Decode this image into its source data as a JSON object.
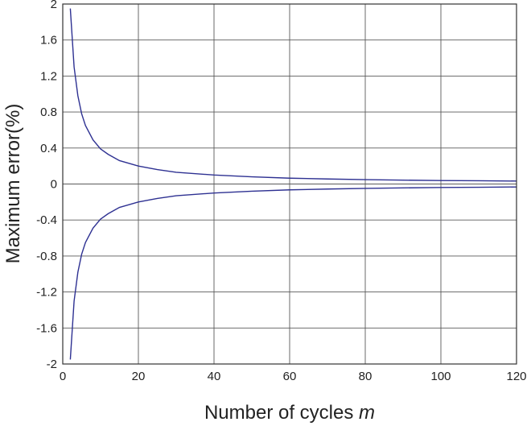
{
  "chart_data": {
    "type": "line",
    "title": "",
    "xlabel_prefix": "Number of cycles ",
    "xlabel_var": "m",
    "ylabel": "Maximum error(%)",
    "xlim": [
      0,
      120
    ],
    "ylim": [
      -2,
      2
    ],
    "x_ticks": [
      0,
      20,
      40,
      60,
      80,
      100,
      120
    ],
    "x_tick_labels": [
      "0",
      "20",
      "40",
      "60",
      "80",
      "100",
      "120"
    ],
    "y_ticks": [
      2,
      1.6,
      1.2,
      0.8,
      0.4,
      0,
      -0.4,
      -0.8,
      -1.2,
      -1.6,
      -2
    ],
    "y_tick_labels": [
      "2",
      "1.6",
      "1.2",
      "0.8",
      "0.4",
      "0",
      "-0.4",
      "-0.8",
      "-1.2",
      "-1.6",
      "-2"
    ],
    "grid": true,
    "line_color": "#2e3192",
    "series": [
      {
        "x": [
          2,
          3,
          4,
          5,
          6,
          8,
          10,
          12,
          15,
          20,
          25,
          30,
          40,
          50,
          60,
          70,
          80,
          90,
          100,
          110,
          120
        ],
        "values": [
          1.95,
          1.3,
          0.98,
          0.78,
          0.65,
          0.49,
          0.39,
          0.33,
          0.26,
          0.2,
          0.16,
          0.13,
          0.1,
          0.08,
          0.065,
          0.056,
          0.049,
          0.043,
          0.039,
          0.036,
          0.033
        ]
      },
      {
        "x": [
          2,
          3,
          4,
          5,
          6,
          8,
          10,
          12,
          15,
          20,
          25,
          30,
          40,
          50,
          60,
          70,
          80,
          90,
          100,
          110,
          120
        ],
        "values": [
          -1.95,
          -1.3,
          -0.98,
          -0.78,
          -0.65,
          -0.49,
          -0.39,
          -0.33,
          -0.26,
          -0.2,
          -0.16,
          -0.13,
          -0.1,
          -0.08,
          -0.065,
          -0.056,
          -0.049,
          -0.043,
          -0.039,
          -0.036,
          -0.033
        ]
      }
    ]
  }
}
